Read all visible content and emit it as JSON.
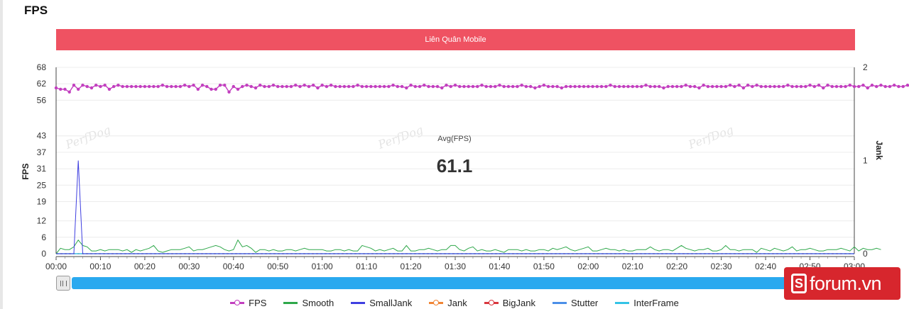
{
  "page": {
    "title": "FPS"
  },
  "banner": {
    "label": "Liên Quân Mobile",
    "color": "#ef5262"
  },
  "chart_data": {
    "type": "line",
    "title": "Liên Quân Mobile",
    "ylabel_left": "FPS",
    "ylabel_right": "Jank",
    "y_left_ticks": [
      0,
      6,
      12,
      19,
      25,
      31,
      37,
      43,
      56,
      62,
      68
    ],
    "ylim_left": [
      0,
      68
    ],
    "y_right_ticks": [
      0,
      1,
      2
    ],
    "ylim_right": [
      0,
      2
    ],
    "x_tick_labels": [
      "00:00",
      "00:10",
      "00:20",
      "00:30",
      "00:40",
      "00:50",
      "01:00",
      "01:10",
      "01:20",
      "01:30",
      "01:40",
      "01:50",
      "02:00",
      "02:10",
      "02:20",
      "02:30",
      "02:40",
      "02:50",
      "03:00"
    ],
    "x_range_seconds": [
      0,
      180
    ],
    "x_step_seconds": 1,
    "grid": "horizontal",
    "legend_position": "bottom",
    "annotation": {
      "label": "Avg(FPS)",
      "value": "61.1"
    },
    "watermark": "PerfDog",
    "series": [
      {
        "name": "FPS",
        "color": "#c23fbf",
        "axis": "left",
        "marker": "circle",
        "values": [
          60.5,
          60,
          60,
          59,
          61.5,
          60,
          61.5,
          61,
          60.5,
          61.5,
          61,
          61.5,
          60,
          61,
          61.5,
          61,
          61,
          61,
          61,
          61,
          61,
          61,
          61,
          61,
          61.5,
          61,
          61,
          61,
          61,
          61.5,
          61,
          61.5,
          60,
          61.5,
          61,
          60,
          60,
          61.5,
          61.5,
          59,
          61,
          60,
          61,
          61.5,
          61,
          60.5,
          61.5,
          61,
          61,
          61.5,
          61,
          61,
          61,
          61,
          61.5,
          61,
          61.5,
          61,
          61.5,
          60.5,
          61.5,
          61,
          61.5,
          61,
          61,
          61,
          61,
          61,
          61.5,
          61,
          61,
          61,
          61,
          61,
          61,
          61,
          61.5,
          61,
          61,
          60.5,
          61.5,
          61,
          61,
          61.5,
          61,
          61,
          61,
          60.5,
          61.5,
          61,
          61.5,
          61,
          61,
          61,
          61,
          61,
          61.5,
          61,
          61,
          61,
          61.5,
          61,
          61,
          61,
          61,
          61.5,
          61,
          61,
          60.5,
          61,
          61.5,
          61,
          61,
          61,
          60.5,
          61,
          61,
          61,
          61,
          61,
          61,
          61,
          61,
          61,
          61,
          61.5,
          61,
          61,
          61,
          61,
          61,
          61,
          61,
          61.5,
          61,
          61,
          61,
          60.5,
          61,
          61,
          61,
          61,
          61.5,
          61,
          61,
          60.5,
          61.5,
          61,
          61,
          61,
          61,
          61,
          61.5,
          61,
          61.5,
          60.5,
          61.5,
          61,
          61.5,
          61,
          61,
          61,
          61,
          61,
          61,
          61.5,
          61,
          61,
          61,
          61,
          61.5,
          61,
          61.5,
          60.5,
          61.5,
          61,
          61,
          61,
          61,
          61.5,
          61,
          61,
          61.5,
          60.5,
          61.5,
          61,
          61.5,
          61,
          61,
          61.5,
          61,
          61,
          61.5,
          60.5,
          61.5,
          61
        ]
      },
      {
        "name": "Smooth",
        "color": "#2ea84a",
        "axis": "left",
        "values": [
          0,
          2,
          1.5,
          1.5,
          2.5,
          5,
          3,
          2.5,
          1,
          1,
          1.5,
          1,
          1.5,
          1.5,
          1.5,
          1,
          1.5,
          0.5,
          1.5,
          1,
          1.5,
          2,
          3,
          1,
          0.5,
          1,
          1.5,
          1.5,
          1.5,
          2,
          2.5,
          1,
          1.5,
          1.5,
          2,
          2.5,
          3,
          2.5,
          1.5,
          1,
          1.5,
          5,
          2.5,
          3,
          2,
          0.5,
          1.5,
          1.5,
          1,
          1.5,
          1,
          1,
          1.5,
          1.5,
          1,
          1.5,
          2,
          1.5,
          1.5,
          1.5,
          1.5,
          1,
          1,
          1.5,
          1.5,
          1,
          1.5,
          1,
          1,
          3,
          2.5,
          2,
          1,
          1.5,
          1,
          1.5,
          2,
          1,
          1,
          3,
          1,
          1,
          1.5,
          1.5,
          2,
          1.5,
          1,
          1.5,
          1.5,
          3,
          3,
          1.5,
          1,
          2,
          2.5,
          1,
          1.5,
          1,
          1,
          1.5,
          1,
          0.5,
          1.5,
          1.5,
          1.5,
          1,
          1.5,
          1,
          1,
          1.5,
          1.5,
          1,
          2,
          1.5,
          2,
          2.5,
          1.5,
          1,
          1.5,
          2,
          2.5,
          1,
          1,
          1.5,
          2,
          1.5,
          1.5,
          1,
          1.5,
          1,
          1,
          1.5,
          1.5,
          1.5,
          2.5,
          1.5,
          1,
          1.5,
          1.5,
          1,
          2,
          3,
          2,
          1.5,
          1,
          1.5,
          1.5,
          2,
          1,
          1,
          1.5,
          3,
          1.5,
          1.5,
          1,
          1.5,
          1.5,
          1.5,
          0.5,
          2,
          1.5,
          1,
          2,
          1.5,
          1,
          1.5,
          2.5,
          1,
          1.5,
          1.5,
          2,
          1.5,
          1,
          1,
          1.5,
          1.5,
          1.5,
          2,
          1.5,
          1,
          2.5,
          1,
          2,
          1.5,
          1.5,
          2,
          1.5
        ]
      },
      {
        "name": "SmallJank",
        "color": "#3f3fe0",
        "axis": "left",
        "values": [
          0,
          0,
          0,
          0,
          0,
          34,
          0,
          0,
          0,
          0,
          0,
          0,
          0,
          0,
          0,
          0,
          0,
          0,
          0,
          0,
          0,
          0,
          0,
          0,
          0,
          0,
          0,
          0,
          0,
          0,
          0,
          0,
          0,
          0,
          0,
          0,
          0,
          0,
          0,
          0,
          0,
          0,
          0,
          0,
          0,
          0,
          0,
          0,
          0,
          0,
          0,
          0,
          0,
          0,
          0,
          0,
          0,
          0,
          0,
          0,
          0,
          0,
          0,
          0,
          0,
          0,
          0,
          0,
          0,
          0,
          0,
          0,
          0,
          0,
          0,
          0,
          0,
          0,
          0,
          0,
          0,
          0,
          0,
          0,
          0,
          0,
          0,
          0,
          0,
          0,
          0,
          0,
          0,
          0,
          0,
          0,
          0,
          0,
          0,
          0,
          0,
          0,
          0,
          0,
          0,
          0,
          0,
          0,
          0,
          0,
          0,
          0,
          0,
          0,
          0,
          0,
          0,
          0,
          0,
          0,
          0,
          0,
          0,
          0,
          0,
          0,
          0,
          0,
          0,
          0,
          0,
          0,
          0,
          0,
          0,
          0,
          0,
          0,
          0,
          0,
          0,
          0,
          0,
          0,
          0,
          0,
          0,
          0,
          0,
          0,
          0,
          0,
          0,
          0,
          0,
          0,
          0,
          0,
          0,
          0,
          0,
          0,
          0,
          0,
          0,
          0,
          0,
          0,
          0,
          0,
          0,
          0,
          0,
          0,
          0,
          0,
          0,
          0,
          0,
          0,
          0
        ]
      },
      {
        "name": "Jank",
        "color": "#f08535",
        "axis": "right",
        "marker": "circle",
        "values_const": 0
      },
      {
        "name": "BigJank",
        "color": "#d9363e",
        "axis": "right",
        "marker": "circle",
        "values_const": 0
      },
      {
        "name": "Stutter",
        "color": "#4b8fe8",
        "axis": "right",
        "values_const": 0
      },
      {
        "name": "InterFrame",
        "color": "#33c3e6",
        "axis": "right",
        "values_const": 0
      }
    ]
  },
  "slider": {
    "track_color": "#2aa9ef"
  },
  "logo": {
    "mark": "S",
    "text": "forum.vn"
  }
}
